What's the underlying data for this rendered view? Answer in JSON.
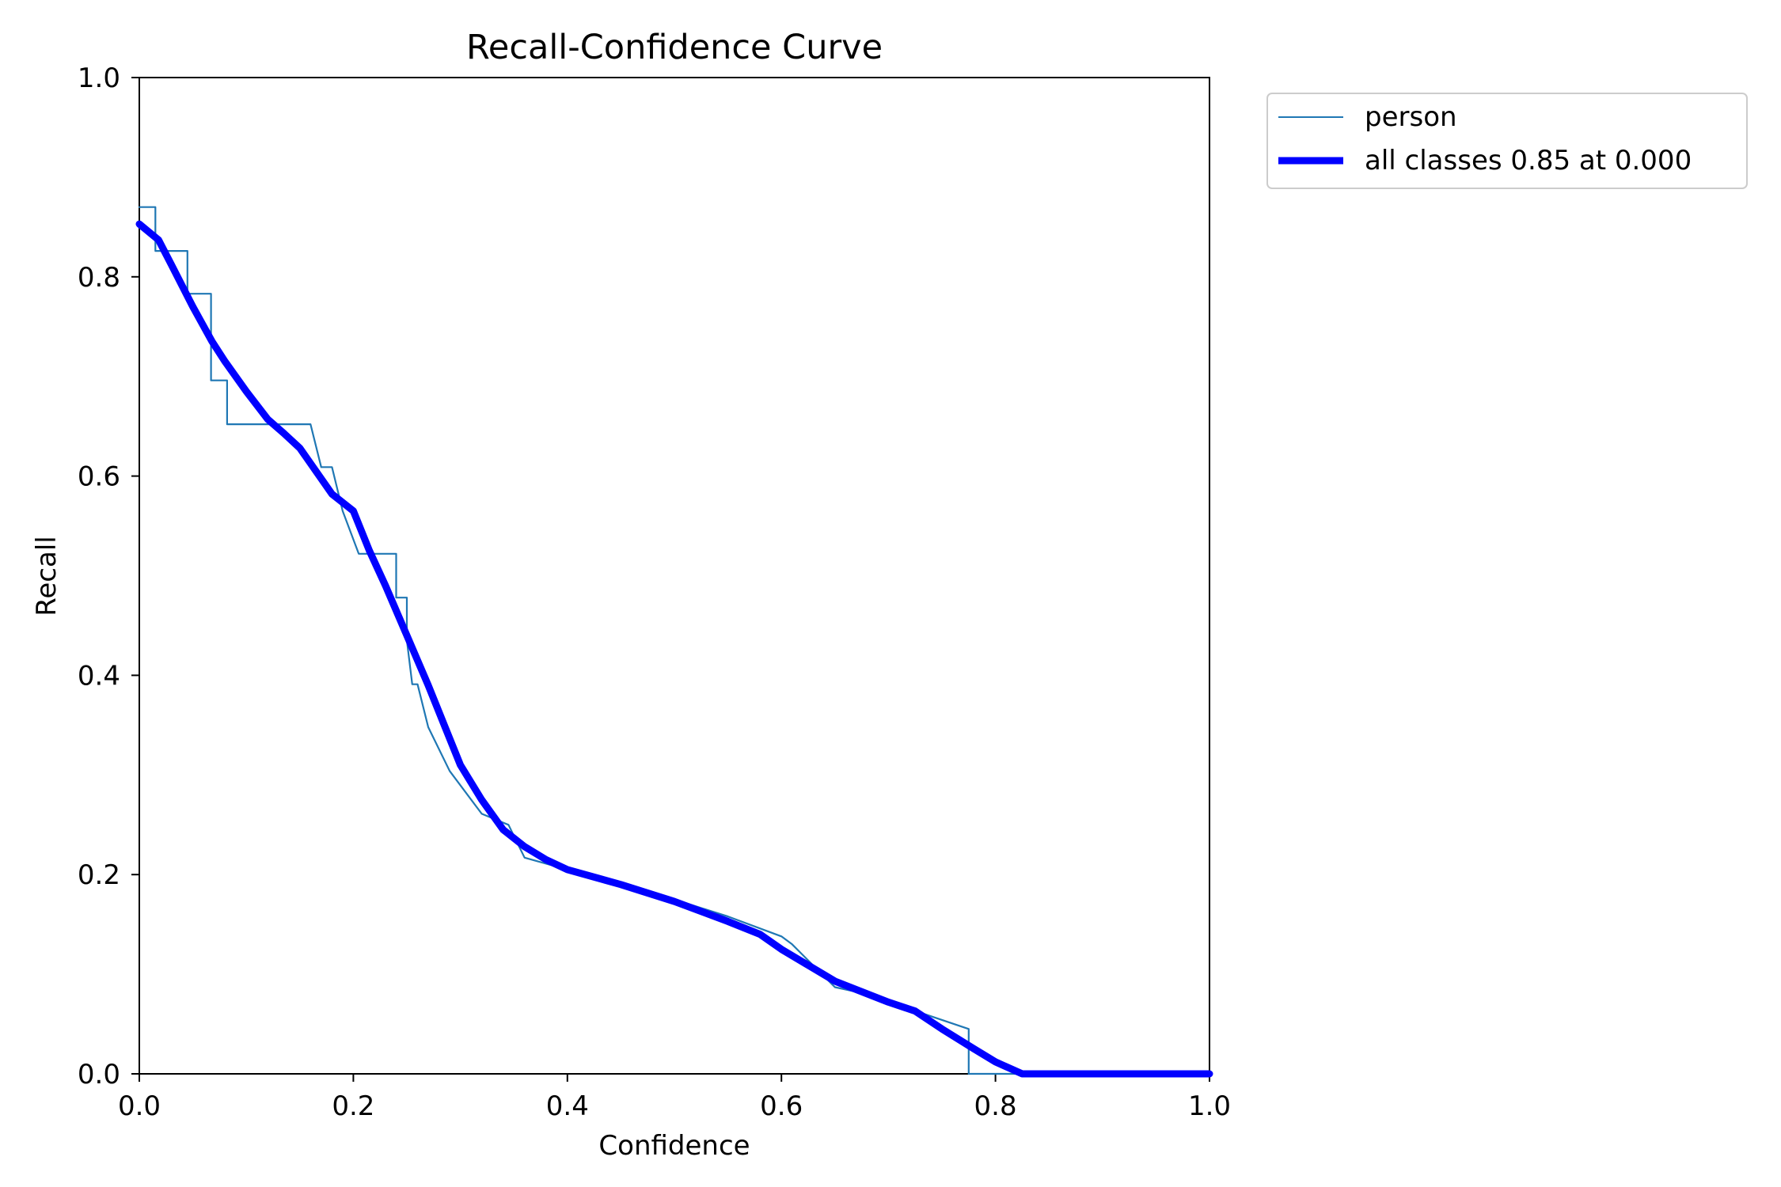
{
  "chart_data": {
    "type": "line",
    "title": "Recall-Confidence Curve",
    "xlabel": "Confidence",
    "ylabel": "Recall",
    "xlim": [
      0.0,
      1.0
    ],
    "ylim": [
      0.0,
      1.0
    ],
    "xticks": [
      "0.0",
      "0.2",
      "0.4",
      "0.6",
      "0.8",
      "1.0"
    ],
    "yticks": [
      "0.0",
      "0.2",
      "0.4",
      "0.6",
      "0.8",
      "1.0"
    ],
    "grid": false,
    "legend_position": "outside-top-right",
    "series": [
      {
        "name": "person",
        "color": "#1f77b4",
        "x": [
          0.0,
          0.015,
          0.015,
          0.045,
          0.045,
          0.067,
          0.067,
          0.082,
          0.082,
          0.16,
          0.17,
          0.18,
          0.19,
          0.19,
          0.205,
          0.205,
          0.24,
          0.24,
          0.25,
          0.25,
          0.255,
          0.26,
          0.27,
          0.29,
          0.32,
          0.345,
          0.36,
          0.4,
          0.45,
          0.5,
          0.55,
          0.6,
          0.61,
          0.65,
          0.68,
          0.72,
          0.775,
          0.775,
          0.8,
          1.0
        ],
        "y": [
          0.87,
          0.87,
          0.826,
          0.826,
          0.783,
          0.783,
          0.696,
          0.696,
          0.652,
          0.652,
          0.609,
          0.609,
          0.565,
          0.565,
          0.522,
          0.522,
          0.522,
          0.478,
          0.478,
          0.435,
          0.391,
          0.391,
          0.348,
          0.304,
          0.261,
          0.25,
          0.217,
          0.205,
          0.19,
          0.175,
          0.158,
          0.138,
          0.13,
          0.087,
          0.08,
          0.065,
          0.045,
          0.0,
          0.0,
          0.0
        ]
      },
      {
        "name": "all classes 0.85 at 0.000",
        "color": "#0000ff",
        "x": [
          0.0,
          0.018,
          0.03,
          0.05,
          0.068,
          0.08,
          0.1,
          0.12,
          0.135,
          0.15,
          0.165,
          0.18,
          0.2,
          0.215,
          0.23,
          0.25,
          0.27,
          0.285,
          0.3,
          0.32,
          0.34,
          0.36,
          0.38,
          0.4,
          0.45,
          0.5,
          0.55,
          0.58,
          0.6,
          0.65,
          0.7,
          0.725,
          0.75,
          0.78,
          0.8,
          0.825,
          0.85,
          1.0
        ],
        "y": [
          0.853,
          0.837,
          0.812,
          0.77,
          0.735,
          0.715,
          0.685,
          0.657,
          0.643,
          0.628,
          0.605,
          0.582,
          0.565,
          0.525,
          0.49,
          0.44,
          0.39,
          0.35,
          0.31,
          0.275,
          0.245,
          0.228,
          0.215,
          0.205,
          0.19,
          0.173,
          0.153,
          0.14,
          0.125,
          0.093,
          0.072,
          0.063,
          0.045,
          0.025,
          0.012,
          0.0,
          0.0,
          0.0
        ]
      }
    ]
  }
}
